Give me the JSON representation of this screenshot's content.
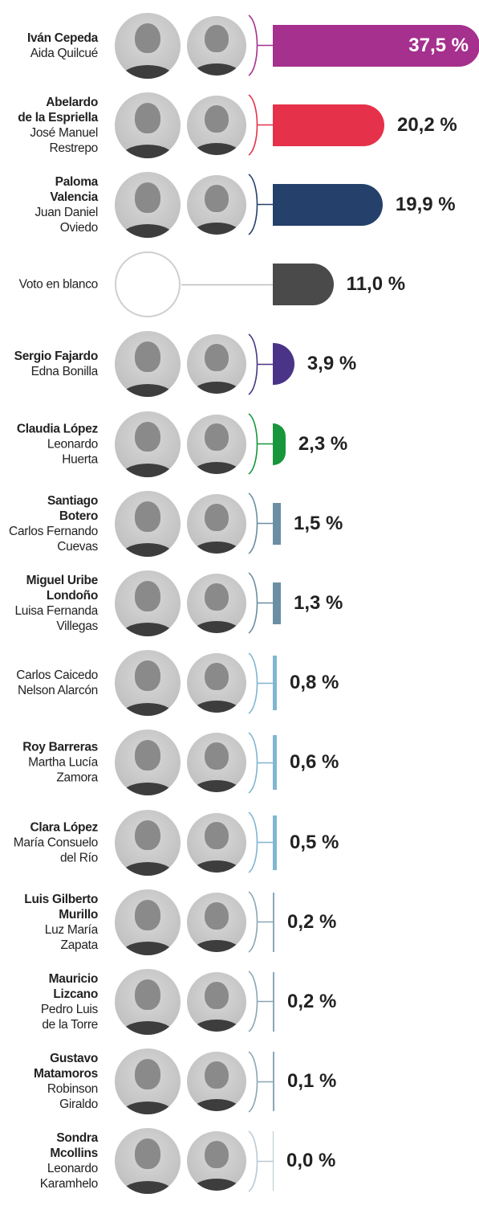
{
  "chart_data": {
    "type": "bar",
    "orientation": "horizontal",
    "unit": "%",
    "items": [
      {
        "president": "Iván Cepeda",
        "vice": "Aida Quilcué",
        "value": 37.5,
        "label": "37,5 %",
        "color": "#a5308e"
      },
      {
        "president": "Abelardo de la Espriella",
        "vice": "José Manuel Restrepo",
        "value": 20.2,
        "label": "20,2 %",
        "color": "#e5314a"
      },
      {
        "president": "Paloma Valencia",
        "vice": "Juan Daniel Oviedo",
        "value": 19.9,
        "label": "19,9 %",
        "color": "#24406b"
      },
      {
        "president": "Voto en blanco",
        "vice": "",
        "value": 11.0,
        "label": "11,0 %",
        "color": "#4a4a4a"
      },
      {
        "president": "Sergio Fajardo",
        "vice": "Edna Bonilla",
        "value": 3.9,
        "label": "3,9 %",
        "color": "#4a3488"
      },
      {
        "president": "Claudia López",
        "vice": "Leonardo Huerta",
        "value": 2.3,
        "label": "2,3 %",
        "color": "#18963c"
      },
      {
        "president": "Santiago Botero",
        "vice": "Carlos Fernando Cuevas",
        "value": 1.5,
        "label": "1,5 %",
        "color": "#6a8ea3"
      },
      {
        "president": "Miguel Uribe Londoño",
        "vice": "Luisa Fernanda Villegas",
        "value": 1.3,
        "label": "1,3 %",
        "color": "#6a8ea3"
      },
      {
        "president": "Carlos Caicedo",
        "vice": "Nelson Alarcón",
        "value": 0.8,
        "label": "0,8 %",
        "color": "#7fb6d2"
      },
      {
        "president": "Roy Barreras",
        "vice": "Martha Lucía Zamora",
        "value": 0.6,
        "label": "0,6 %",
        "color": "#7fb6d2"
      },
      {
        "president": "Clara López",
        "vice": "María Consuelo del Río",
        "value": 0.5,
        "label": "0,5 %",
        "color": "#7fb6d2"
      },
      {
        "president": "Luis Gilberto Murillo",
        "vice": "Luz María Zapata",
        "value": 0.2,
        "label": "0,2 %",
        "color": "#8aa6b6"
      },
      {
        "president": "Mauricio Lizcano",
        "vice": "Pedro Luis de la Torre",
        "value": 0.2,
        "label": "0,2 %",
        "color": "#8aa6b6"
      },
      {
        "president": "Gustavo Matamoros",
        "vice": "Robinson Giraldo",
        "value": 0.1,
        "label": "0,1 %",
        "color": "#8aa6b6"
      },
      {
        "president": "Sondra Mcollins",
        "vice": "Leonardo Karamhelo",
        "value": 0.0,
        "label": "0,0 %",
        "color": "#b9c9d3"
      }
    ]
  }
}
